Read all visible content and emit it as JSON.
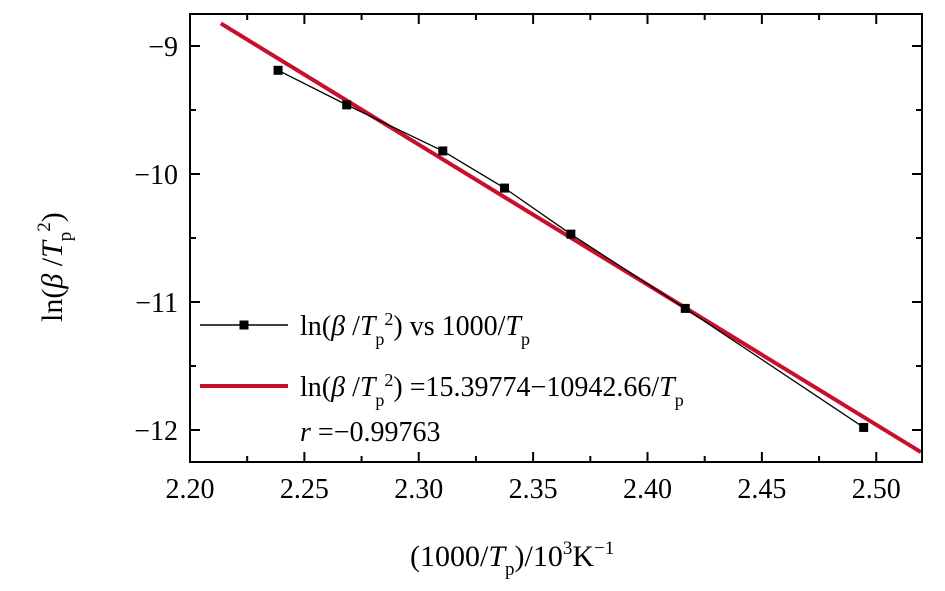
{
  "chart_data": {
    "type": "scatter",
    "title": "",
    "xlim": [
      2.2,
      2.52
    ],
    "ylim": [
      -12.25,
      -8.75
    ],
    "x_ticks": [
      {
        "value": 2.2,
        "label": "2.20"
      },
      {
        "value": 2.25,
        "label": "2.25"
      },
      {
        "value": 2.3,
        "label": "2.30"
      },
      {
        "value": 2.35,
        "label": "2.35"
      },
      {
        "value": 2.4,
        "label": "2.40"
      },
      {
        "value": 2.45,
        "label": "2.45"
      },
      {
        "value": 2.5,
        "label": "2.50"
      }
    ],
    "y_ticks": [
      {
        "value": -9,
        "label": "−9"
      },
      {
        "value": -10,
        "label": "−10"
      },
      {
        "value": -11,
        "label": "−11"
      },
      {
        "value": -12,
        "label": "−12"
      }
    ],
    "xlabel": {
      "prefix": "(1000/",
      "var": "T",
      "sub": "p",
      "suffix": ")/10",
      "sup1": "3",
      "unit": "K",
      "sup2": "−1"
    },
    "ylabel": {
      "prefix": "ln(",
      "beta": "β",
      "slash": " /",
      "var": "T",
      "sub": "p",
      "sup": "2",
      "suffix": ")"
    },
    "series": [
      {
        "name": "ln( β /T_p^2) vs 1000/T_p",
        "color": "#000000",
        "marker": "square",
        "x": [
          2.2385,
          2.2685,
          2.3105,
          2.3375,
          2.3665,
          2.4165,
          2.4945
        ],
        "y": [
          -9.19,
          -9.46,
          -9.82,
          -10.11,
          -10.47,
          -11.05,
          -11.98
        ]
      },
      {
        "name": "ln( β /T_p^2) =15.39774−10942.66/T_p",
        "color": "#c8102e",
        "type": "line",
        "intercept": 15.39774,
        "slope": -10.94266,
        "x_range": [
          2.2135,
          2.5195
        ]
      }
    ],
    "legend": {
      "placement": "bottom-left",
      "entry1": {
        "prefix": "ln(",
        "beta": "β",
        "slash": " /",
        "var": "T",
        "sub": "p",
        "sup": "2",
        "suffix": ") vs 1000/",
        "var2": "T",
        "sub2": "p"
      },
      "entry2": {
        "prefix": "ln(",
        "beta": "β",
        "slash": " /",
        "var": "T",
        "sub": "p",
        "sup": "2",
        "suffix": ") =15.39774−10942.66/",
        "var2": "T",
        "sub2": "p"
      },
      "r_var": "r",
      "r_value": " =−0.99763"
    }
  }
}
